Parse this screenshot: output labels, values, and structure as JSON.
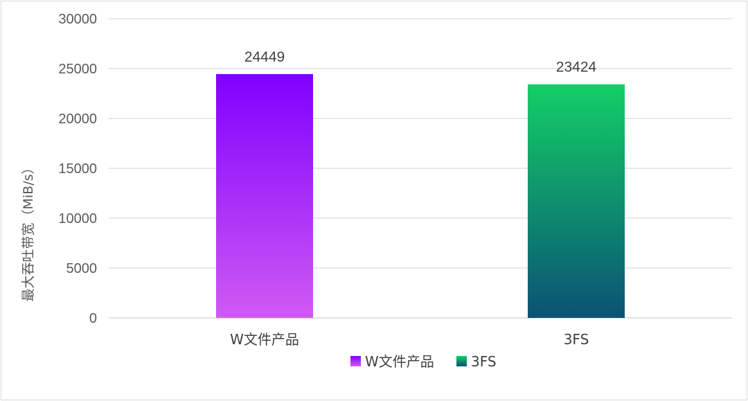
{
  "chart_data": {
    "type": "bar",
    "categories": [
      "W文件产品",
      "3FS"
    ],
    "values": [
      24449,
      23424
    ],
    "ylabel": "最大吞吐带宽（MiB/s）",
    "ylim": [
      0,
      30000
    ],
    "yticks": [
      0,
      5000,
      10000,
      15000,
      20000,
      25000,
      30000
    ],
    "grid": true,
    "data_labels": [
      "24449",
      "23424"
    ],
    "legend": {
      "position": "bottom",
      "entries": [
        "W文件产品",
        "3FS"
      ]
    },
    "colors": [
      {
        "top": "#8000ff",
        "bottom": "#cf5af2"
      },
      {
        "top": "#13cf66",
        "bottom": "#0a5274"
      }
    ]
  }
}
